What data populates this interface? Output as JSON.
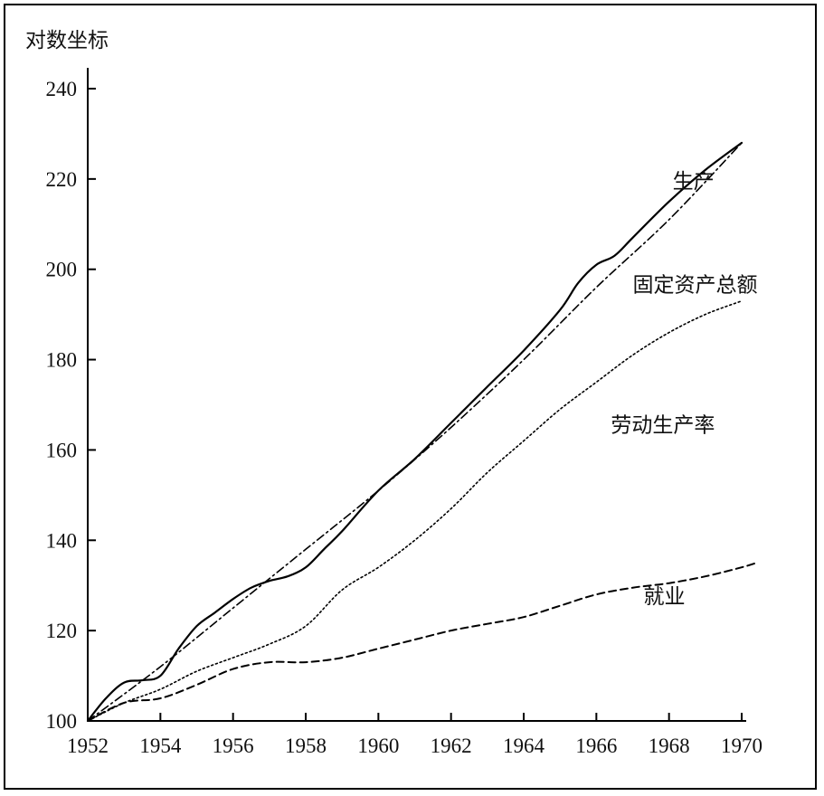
{
  "chart_data": {
    "type": "line",
    "ylabel": "对数坐标",
    "xlabel": "",
    "title": "",
    "xlim": [
      1952,
      1970
    ],
    "ylim": [
      100,
      240
    ],
    "x_ticks": [
      "1952",
      "1954",
      "1956",
      "1958",
      "1960",
      "1962",
      "1964",
      "1966",
      "1968",
      "1970"
    ],
    "y_ticks": [
      "100",
      "120",
      "140",
      "160",
      "180",
      "200",
      "220",
      "240"
    ],
    "grid": false,
    "series": [
      {
        "name": "生产",
        "style": "solid",
        "x": [
          1952,
          1952.5,
          1953,
          1953.5,
          1954,
          1954.5,
          1955,
          1955.5,
          1956,
          1956.5,
          1957,
          1957.5,
          1958,
          1958.5,
          1959,
          1960,
          1961,
          1962,
          1963,
          1964,
          1965,
          1965.5,
          1966,
          1966.5,
          1967,
          1968,
          1969,
          1970
        ],
        "y": [
          100,
          105,
          108.5,
          109,
          110,
          116,
          121,
          124,
          127,
          129.5,
          131,
          132,
          134,
          138,
          142,
          151,
          158,
          166,
          174,
          182,
          191,
          197,
          201,
          203,
          207,
          215,
          222,
          228
        ]
      },
      {
        "name": "固定资产总额",
        "style": "dashdot",
        "x": [
          1952,
          1954,
          1956,
          1958,
          1960,
          1962,
          1964,
          1966,
          1968,
          1970
        ],
        "y": [
          100,
          112,
          125,
          138,
          151,
          165,
          180,
          196,
          211,
          228
        ]
      },
      {
        "name": "劳动生产率",
        "style": "dotted",
        "x": [
          1952,
          1953,
          1954,
          1955,
          1956,
          1957,
          1958,
          1959,
          1960,
          1961,
          1962,
          1963,
          1964,
          1965,
          1966,
          1967,
          1968,
          1969,
          1970
        ],
        "y": [
          100,
          104,
          107,
          111,
          114,
          117,
          121,
          129,
          134,
          140,
          147,
          155,
          162,
          169,
          175,
          181,
          186,
          190,
          193
        ]
      },
      {
        "name": "就业",
        "style": "dashed",
        "x": [
          1952,
          1953,
          1954,
          1955,
          1956,
          1957,
          1958,
          1959,
          1960,
          1961,
          1962,
          1963,
          1964,
          1965,
          1966,
          1967,
          1968,
          1969,
          1970,
          1970.4
        ],
        "y": [
          100,
          104,
          105,
          108,
          111.5,
          113,
          113,
          114,
          116,
          118,
          120,
          121.5,
          123,
          125.5,
          128,
          129.5,
          130.5,
          132,
          134,
          135
        ]
      }
    ],
    "annotations": [
      {
        "text": "生产",
        "at": [
          1968.1,
          218
        ]
      },
      {
        "text": "固定资产总额",
        "at": [
          1967.0,
          195
        ]
      },
      {
        "text": "劳动生产率",
        "at": [
          1966.4,
          164
        ]
      },
      {
        "text": "就业",
        "at": [
          1967.3,
          126
        ]
      }
    ]
  }
}
